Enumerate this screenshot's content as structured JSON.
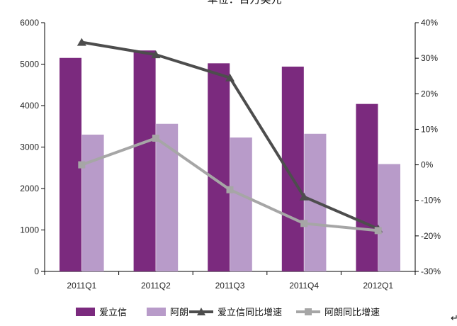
{
  "chart_data": {
    "type": "bar",
    "title": "单位：百万美元",
    "categories": [
      "2011Q1",
      "2011Q2",
      "2011Q3",
      "2011Q4",
      "2012Q1"
    ],
    "series": [
      {
        "name": "爱立信",
        "kind": "bar",
        "axis": "left",
        "color": "#7B2A7E",
        "values": [
          5150,
          5330,
          5020,
          4940,
          4040
        ]
      },
      {
        "name": "阿朗",
        "kind": "bar",
        "axis": "left",
        "color": "#B89BC9",
        "values": [
          3300,
          3560,
          3230,
          3320,
          2590
        ]
      },
      {
        "name": "爱立信同比增速",
        "kind": "line",
        "axis": "right",
        "marker": "triangle",
        "color": "#4D4D4D",
        "values": [
          0.345,
          0.31,
          0.245,
          -0.09,
          -0.18
        ]
      },
      {
        "name": "阿朗同比增速",
        "kind": "line",
        "axis": "right",
        "marker": "square",
        "color": "#A6A6A6",
        "values": [
          0.0,
          0.075,
          -0.07,
          -0.165,
          -0.185
        ]
      }
    ],
    "y_left": {
      "min": 0,
      "max": 6000,
      "ticks": [
        0,
        1000,
        2000,
        3000,
        4000,
        5000,
        6000
      ]
    },
    "y_right": {
      "min": -0.3,
      "max": 0.4,
      "ticks": [
        -0.3,
        -0.2,
        -0.1,
        0,
        0.1,
        0.2,
        0.3,
        0.4
      ],
      "tick_labels": [
        "-30%",
        "-20%",
        "-10%",
        "0%",
        "10%",
        "20%",
        "30%",
        "40%"
      ]
    },
    "legend_position": "bottom",
    "grid": false
  }
}
